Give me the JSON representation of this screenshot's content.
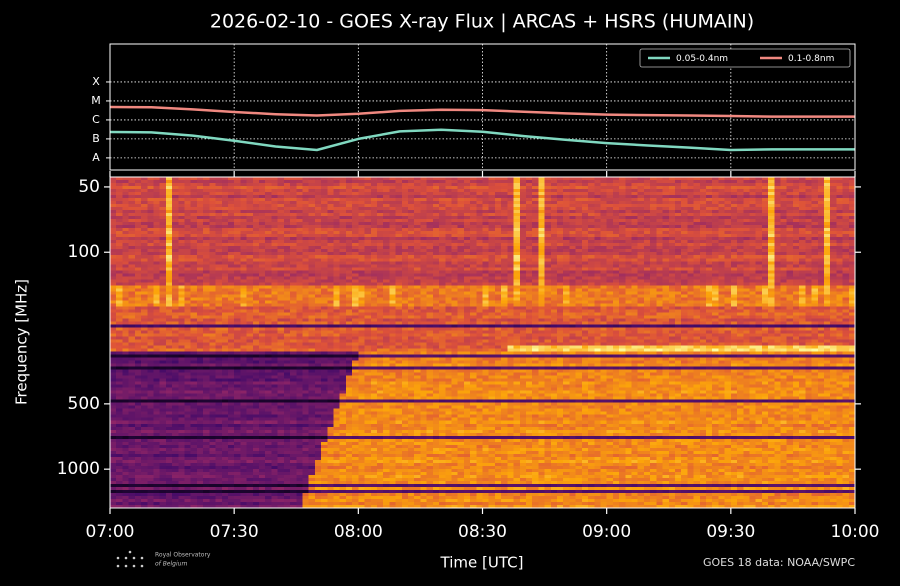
{
  "chart_data": [
    {
      "type": "line",
      "title": "2026-02-10 - GOES X-ray Flux | ARCAS + HSRS (HUMAIN)",
      "x": [
        "07:00",
        "07:10",
        "07:20",
        "07:30",
        "07:40",
        "07:50",
        "08:00",
        "08:10",
        "08:20",
        "08:30",
        "08:40",
        "08:50",
        "09:00",
        "09:10",
        "09:20",
        "09:30",
        "09:40",
        "09:50",
        "10:00"
      ],
      "xlim": [
        "07:00",
        "10:00"
      ],
      "xticks": [
        "07:30",
        "08:00",
        "08:30",
        "09:00",
        "09:30"
      ],
      "log_y": true,
      "ylim": [
        2.3e-09,
        0.01
      ],
      "yticks": [
        {
          "value": 1e-08,
          "label": "A"
        },
        {
          "value": 1e-07,
          "label": "B"
        },
        {
          "value": 1e-06,
          "label": "C"
        },
        {
          "value": 1e-05,
          "label": "M"
        },
        {
          "value": 0.0001,
          "label": "X"
        }
      ],
      "grid": true,
      "legend": "upper right",
      "series": [
        {
          "name": "0.05-0.4nm",
          "color": "#80d8c0",
          "values": [
            2.3e-07,
            2.2e-07,
            1.5e-07,
            8e-08,
            4e-08,
            2.6e-08,
            1e-07,
            2.5e-07,
            3e-07,
            2.4e-07,
            1.4e-07,
            9e-08,
            6e-08,
            4.5e-08,
            3.5e-08,
            2.6e-08,
            2.8e-08,
            2.8e-08,
            2.8e-08
          ]
        },
        {
          "name": "0.1-0.8nm",
          "color": "#f08880",
          "values": [
            4.8e-06,
            4.6e-06,
            3.6e-06,
            2.6e-06,
            2e-06,
            1.7e-06,
            2.1e-06,
            3e-06,
            3.4e-06,
            3.3e-06,
            2.7e-06,
            2.2e-06,
            1.9e-06,
            1.8e-06,
            1.7e-06,
            1.6e-06,
            1.5e-06,
            1.5e-06,
            1.5e-06
          ]
        }
      ]
    },
    {
      "type": "spectrogram",
      "xlabel": "Time [UTC]",
      "ylabel": "Frequency [MHz]",
      "log_y": true,
      "ylim": [
        1510,
        45
      ],
      "yticks": [
        50,
        100,
        500,
        1000
      ],
      "xlim": [
        "07:00",
        "10:00"
      ],
      "xticks": [
        "07:00",
        "07:30",
        "08:00",
        "08:30",
        "09:00",
        "09:30",
        "10:00"
      ],
      "colormap": "inferno"
    }
  ],
  "footer": {
    "logo": [
      "Royal Observatory",
      "of Belgium"
    ],
    "credit": "GOES 18 data: NOAA/SWPC"
  }
}
